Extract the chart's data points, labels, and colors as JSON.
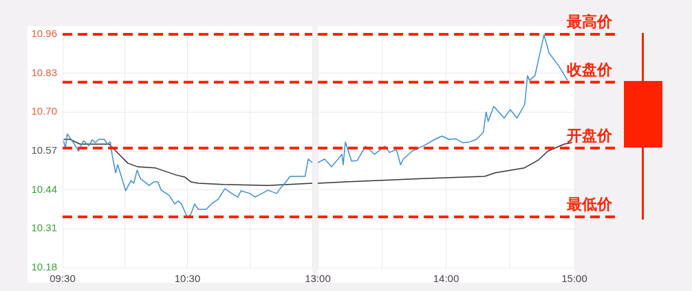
{
  "chart_data": [
    {
      "type": "line",
      "xlim": [
        9.5,
        11.5
      ],
      "xticks": [
        {
          "value": 9.5,
          "label": "09:30"
        },
        {
          "value": 10,
          "label": null
        },
        {
          "value": 10.5,
          "label": "10:30"
        },
        {
          "value": 11,
          "label": null
        },
        {
          "value": 11.5,
          "label": null
        }
      ],
      "ylim": [
        10.18,
        10.96
      ],
      "yticks": [
        10.18,
        10.31,
        10.44,
        10.57,
        {
          "value": 10.7,
          "label": "10.70"
        },
        10.83,
        10.96
      ],
      "grid": true,
      "legend": false,
      "marker": "none",
      "series": [
        {
          "color": "#3d8fd8",
          "x": [
            9.508,
            9.522,
            9.538,
            9.583,
            9.628,
            9.667,
            9.71,
            9.737,
            9.763,
            9.79,
            9.833,
            9.86,
            9.882,
            9.898,
            9.925,
            9.942,
            10.005,
            10.048,
            10.07,
            10.097,
            10.123,
            10.193,
            10.232,
            10.263,
            10.29,
            10.355,
            10.398,
            10.425,
            10.452,
            10.5,
            10.527,
            10.558,
            10.587,
            10.65,
            10.693,
            10.747,
            10.8,
            10.855,
            10.903,
            10.93,
            11,
            11.043,
            11.145,
            11.215,
            11.242,
            11.28,
            11.323,
            11.392,
            11.442,
            11.468,
            11.5
          ],
          "values": [
            10.604,
            10.58,
            10.627,
            10.6,
            10.57,
            10.604,
            10.588,
            10.607,
            10.598,
            10.609,
            10.609,
            10.593,
            10.6,
            10.554,
            10.497,
            10.524,
            10.437,
            10.471,
            10.462,
            10.506,
            10.478,
            10.455,
            10.467,
            10.467,
            10.439,
            10.421,
            10.393,
            10.403,
            10.393,
            10.347,
            10.359,
            10.393,
            10.375,
            10.375,
            10.393,
            10.409,
            10.444,
            10.428,
            10.416,
            10.437,
            10.428,
            10.416,
            10.439,
            10.428,
            10.444,
            10.462,
            10.485,
            10.485,
            10.485,
            10.543,
            10.531
          ]
        },
        {
          "color": "#333333",
          "x": [
            9.508,
            9.558,
            9.64,
            9.872,
            9.942,
            10.023,
            10.103,
            10.247,
            10.408,
            10.478,
            10.527,
            10.587,
            10.785,
            11.145,
            11.5
          ],
          "values": [
            10.609,
            10.609,
            10.593,
            10.593,
            10.563,
            10.529,
            10.517,
            10.513,
            10.49,
            10.483,
            10.467,
            10.462,
            10.458,
            10.455,
            10.462
          ]
        }
      ],
      "ref_lines": [
        {
          "axis": "y",
          "value": 10.96,
          "color": "#ff2200",
          "line_style": "dashed"
        },
        {
          "axis": "y",
          "value": 10.8,
          "color": "#ff2200",
          "line_style": "dashed"
        },
        {
          "axis": "y",
          "value": 10.58,
          "color": "#ff2200",
          "line_style": "dashed"
        },
        {
          "axis": "y",
          "value": 10.35,
          "color": "#ff2200",
          "line_style": "dashed"
        }
      ]
    },
    {
      "type": "line",
      "xlim": [
        13,
        15
      ],
      "tick_labels": "x",
      "xticks": [
        {
          "value": 13,
          "label": "13:00"
        },
        {
          "value": 13.5,
          "label": null
        },
        {
          "value": 14,
          "label": "14:00"
        },
        {
          "value": 14.5,
          "label": null
        },
        {
          "value": 15,
          "label": "15:00"
        }
      ],
      "ylim": [
        10.18,
        10.96
      ],
      "yticks": [
        10.18,
        10.31,
        10.44,
        10.57,
        10.7,
        10.83,
        10.96
      ],
      "grid": true,
      "legend": false,
      "marker": "none",
      "series": [
        {
          "color": "#3d8fd8",
          "x": [
            13,
            13.053,
            13.108,
            13.188,
            13.198,
            13.215,
            13.263,
            13.307,
            13.372,
            13.442,
            13.522,
            13.558,
            13.613,
            13.645,
            13.667,
            13.737,
            13.828,
            13.913,
            13.968,
            14.022,
            14.075,
            14.128,
            14.183,
            14.237,
            14.29,
            14.312,
            14.328,
            14.372,
            14.452,
            14.5,
            14.553,
            14.613,
            14.635,
            14.65,
            14.693,
            14.763,
            14.785,
            14.802,
            14.882,
            14.947
          ],
          "values": [
            10.531,
            10.543,
            10.517,
            10.559,
            10.524,
            10.6,
            10.536,
            10.538,
            10.586,
            10.559,
            10.586,
            10.565,
            10.575,
            10.524,
            10.543,
            10.57,
            10.588,
            10.609,
            10.62,
            10.609,
            10.611,
            10.598,
            10.6,
            10.609,
            10.632,
            10.7,
            10.669,
            10.719,
            10.68,
            10.708,
            10.68,
            10.726,
            10.822,
            10.806,
            10.822,
            10.958,
            10.926,
            10.898,
            10.852,
            10.806
          ]
        },
        {
          "color": "#333333",
          "x": [
            13,
            13.215,
            13.843,
            14.3,
            14.383,
            14.608,
            14.72,
            14.795,
            14.92,
            14.983
          ],
          "values": [
            10.462,
            10.467,
            10.478,
            10.485,
            10.497,
            10.513,
            10.54,
            10.57,
            10.593,
            10.598
          ]
        }
      ],
      "ref_lines": [
        {
          "axis": "y",
          "value": 10.96,
          "label": "最高价",
          "color": "#ff2200",
          "line_style": "dashed"
        },
        {
          "axis": "y",
          "value": 10.8,
          "label": "收盘价",
          "color": "#ff2200",
          "line_style": "dashed"
        },
        {
          "axis": "y",
          "value": 10.58,
          "label": "开盘价",
          "color": "#ff2200",
          "line_style": "dashed"
        },
        {
          "axis": "y",
          "value": 10.35,
          "label": "最低价",
          "color": "#ff2200",
          "line_style": "dashed"
        }
      ]
    }
  ]
}
